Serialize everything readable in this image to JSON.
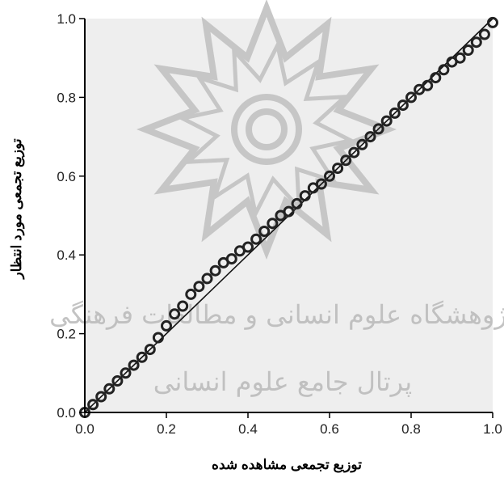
{
  "chart_data": {
    "type": "scatter",
    "title": "",
    "xlabel": "توزیع تجمعی مشاهده شده",
    "ylabel": "توزیع تجمعی مورد انتظار",
    "xlim": [
      0,
      1
    ],
    "ylim": [
      0,
      1
    ],
    "xticks": [
      "0.0",
      "0.2",
      "0.4",
      "0.6",
      "0.8",
      "1.0"
    ],
    "yticks": [
      "0.0",
      "0.2",
      "0.4",
      "0.6",
      "0.8",
      "1.0"
    ],
    "grid": false,
    "legend": "none",
    "plot_background": "#eeeeee",
    "point_color": "#222222",
    "reference_line": {
      "from": [
        0,
        0
      ],
      "to": [
        1,
        1
      ],
      "color": "#111111"
    },
    "series": [
      {
        "x": [
          0.0,
          0.02,
          0.04,
          0.06,
          0.08,
          0.1,
          0.12,
          0.14,
          0.16,
          0.18,
          0.2,
          0.22,
          0.24,
          0.26,
          0.28,
          0.3,
          0.32,
          0.34,
          0.36,
          0.38,
          0.4,
          0.42,
          0.44,
          0.46,
          0.48,
          0.5,
          0.52,
          0.54,
          0.56,
          0.58,
          0.6,
          0.62,
          0.64,
          0.66,
          0.68,
          0.7,
          0.72,
          0.74,
          0.76,
          0.78,
          0.8,
          0.82,
          0.84,
          0.86,
          0.88,
          0.9,
          0.92,
          0.94,
          0.96,
          0.98,
          1.0
        ],
        "y": [
          0.0,
          0.02,
          0.04,
          0.06,
          0.08,
          0.1,
          0.12,
          0.14,
          0.16,
          0.19,
          0.22,
          0.25,
          0.27,
          0.3,
          0.32,
          0.34,
          0.36,
          0.38,
          0.39,
          0.41,
          0.42,
          0.44,
          0.46,
          0.48,
          0.5,
          0.51,
          0.53,
          0.55,
          0.57,
          0.58,
          0.6,
          0.62,
          0.64,
          0.66,
          0.68,
          0.7,
          0.72,
          0.74,
          0.76,
          0.78,
          0.8,
          0.82,
          0.83,
          0.85,
          0.87,
          0.89,
          0.9,
          0.92,
          0.94,
          0.96,
          0.99
        ]
      }
    ]
  },
  "watermark": {
    "line1": "پژوهشگاه علوم انسانی و مطالعات فرهنگی",
    "line2": "پرتال جامع علوم انسانی"
  }
}
